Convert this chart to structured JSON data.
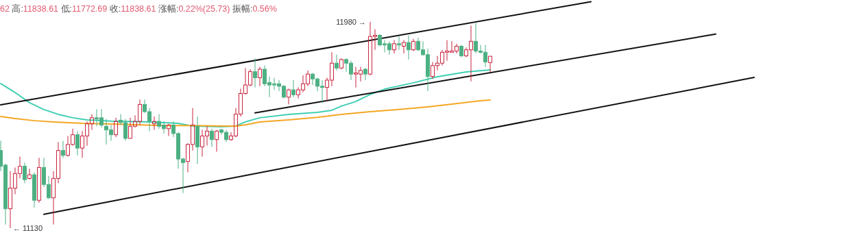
{
  "chart_data": {
    "type": "candlestick",
    "title": "62 高:11838.61 低:11772.69 收:11838.61 涨幅:0.22%(25.73) 振幅:0.56%",
    "categories": [
      null,
      null,
      null,
      null,
      null,
      null,
      null,
      null,
      null,
      null,
      null,
      null,
      null,
      null,
      null,
      null,
      null,
      null,
      null,
      null,
      null,
      null,
      null,
      null,
      null,
      null,
      null,
      null,
      null,
      null,
      null,
      null,
      null,
      null,
      null,
      null,
      null,
      null,
      null,
      null,
      null,
      null,
      null,
      null,
      null,
      null,
      null,
      null,
      null,
      null,
      null,
      null,
      null,
      null,
      null,
      null,
      null,
      null,
      null,
      null,
      null,
      null,
      null,
      null,
      null,
      null,
      null,
      null,
      null,
      null,
      null,
      null,
      null,
      null,
      null,
      null,
      null,
      null,
      null,
      null,
      null,
      null,
      null,
      null,
      null,
      null,
      null,
      null,
      null,
      null,
      null,
      null,
      null,
      null,
      null,
      null,
      null,
      null,
      null,
      null,
      null,
      null,
      null,
      null,
      null,
      null,
      null,
      null,
      null,
      null,
      null,
      null,
      null,
      null,
      null,
      null,
      null,
      null,
      null,
      null,
      null,
      null,
      null,
      null,
      null,
      null,
      null,
      null,
      null,
      null,
      null,
      null,
      null,
      null,
      null,
      null,
      null,
      null,
      null,
      null,
      null,
      null,
      null,
      null,
      null,
      null,
      null,
      null,
      null,
      null,
      null,
      null,
      null,
      null,
      null,
      null,
      null,
      null
    ],
    "ohlc": [
      [
        11450,
        11490,
        11365,
        11385
      ],
      [
        11390,
        11395,
        11145,
        11210
      ],
      [
        11210,
        11365,
        11130,
        11295
      ],
      [
        11295,
        11380,
        11270,
        11355
      ],
      [
        11355,
        11425,
        11335,
        11385
      ],
      [
        11385,
        11400,
        11315,
        11330
      ],
      [
        11335,
        11375,
        11330,
        11350
      ],
      [
        11350,
        11360,
        11215,
        11245
      ],
      [
        11245,
        11420,
        11235,
        11380
      ],
      [
        11380,
        11420,
        11300,
        11310
      ],
      [
        11310,
        11345,
        11250,
        11255
      ],
      [
        11255,
        11365,
        11145,
        11335
      ],
      [
        11335,
        11485,
        11315,
        11450
      ],
      [
        11450,
        11490,
        11420,
        11430
      ],
      [
        11430,
        11510,
        11425,
        11475
      ],
      [
        11475,
        11540,
        11470,
        11515
      ],
      [
        11515,
        11530,
        11430,
        11460
      ],
      [
        11460,
        11530,
        11420,
        11510
      ],
      [
        11510,
        11570,
        11470,
        11560
      ],
      [
        11560,
        11600,
        11535,
        11585
      ],
      [
        11585,
        11620,
        11550,
        11580
      ],
      [
        11585,
        11620,
        11545,
        11555
      ],
      [
        11550,
        11580,
        11475,
        11535
      ],
      [
        11535,
        11555,
        11490,
        11515
      ],
      [
        11515,
        11585,
        11505,
        11570
      ],
      [
        11575,
        11600,
        11555,
        11565
      ],
      [
        11565,
        11580,
        11490,
        11500
      ],
      [
        11500,
        11585,
        11500,
        11550
      ],
      [
        11550,
        11595,
        11545,
        11570
      ],
      [
        11570,
        11660,
        11555,
        11640
      ],
      [
        11640,
        11660,
        11605,
        11610
      ],
      [
        11610,
        11625,
        11530,
        11570
      ],
      [
        11560,
        11590,
        11535,
        11570
      ],
      [
        11570,
        11600,
        11540,
        11550
      ],
      [
        11555,
        11570,
        11520,
        11540
      ],
      [
        11540,
        11560,
        11510,
        11555
      ],
      [
        11555,
        11570,
        11505,
        11520
      ],
      [
        11520,
        11525,
        11375,
        11415
      ],
      [
        11415,
        11420,
        11275,
        11400
      ],
      [
        11405,
        11480,
        11360,
        11475
      ],
      [
        11475,
        11625,
        11450,
        11555
      ],
      [
        11550,
        11590,
        11395,
        11465
      ],
      [
        11465,
        11535,
        11425,
        11510
      ],
      [
        11510,
        11550,
        11470,
        11530
      ],
      [
        11530,
        11540,
        11465,
        11495
      ],
      [
        11495,
        11535,
        11445,
        11530
      ],
      [
        11535,
        11540,
        11515,
        11525
      ],
      [
        11525,
        11535,
        11485,
        11495
      ],
      [
        11495,
        11525,
        11490,
        11510
      ],
      [
        11510,
        11625,
        11505,
        11600
      ],
      [
        11600,
        11705,
        11590,
        11685
      ],
      [
        11685,
        11790,
        11680,
        11720
      ],
      [
        11720,
        11785,
        11715,
        11775
      ],
      [
        11775,
        11830,
        11710,
        11750
      ],
      [
        11750,
        11795,
        11715,
        11785
      ],
      [
        11785,
        11800,
        11715,
        11725
      ],
      [
        11730,
        11755,
        11670,
        11720
      ],
      [
        11725,
        11750,
        11700,
        11720
      ],
      [
        11725,
        11740,
        11695,
        11715
      ],
      [
        11715,
        11720,
        11665,
        11670
      ],
      [
        11670,
        11705,
        11640,
        11700
      ],
      [
        11700,
        11740,
        11670,
        11680
      ],
      [
        11680,
        11710,
        11665,
        11700
      ],
      [
        11700,
        11760,
        11690,
        11725
      ],
      [
        11725,
        11780,
        11715,
        11765
      ],
      [
        11765,
        11770,
        11720,
        11745
      ],
      [
        11745,
        11750,
        11695,
        11715
      ],
      [
        11715,
        11740,
        11645,
        11710
      ],
      [
        11710,
        11750,
        11655,
        11740
      ],
      [
        11740,
        11855,
        11715,
        11810
      ],
      [
        11810,
        11845,
        11780,
        11790
      ],
      [
        11790,
        11830,
        11785,
        11825
      ],
      [
        11825,
        11830,
        11775,
        11810
      ],
      [
        11810,
        11820,
        11740,
        11765
      ],
      [
        11765,
        11795,
        11710,
        11770
      ],
      [
        11765,
        11795,
        11735,
        11780
      ],
      [
        11785,
        11790,
        11740,
        11765
      ],
      [
        11765,
        11980,
        11760,
        11920
      ],
      [
        11920,
        11950,
        11865,
        11925
      ],
      [
        11925,
        11930,
        11880,
        11885
      ],
      [
        11890,
        11905,
        11855,
        11885
      ],
      [
        11890,
        11900,
        11845,
        11865
      ],
      [
        11865,
        11905,
        11850,
        11890
      ],
      [
        11890,
        11920,
        11865,
        11885
      ],
      [
        11880,
        11905,
        11850,
        11895
      ],
      [
        11895,
        11925,
        11825,
        11865
      ],
      [
        11865,
        11910,
        11860,
        11900
      ],
      [
        11900,
        11915,
        11860,
        11865
      ],
      [
        11865,
        11900,
        11840,
        11845
      ],
      [
        11845,
        11870,
        11695,
        11755
      ],
      [
        11755,
        11815,
        11745,
        11800
      ],
      [
        11800,
        11840,
        11780,
        11810
      ],
      [
        11810,
        11865,
        11800,
        11855
      ],
      [
        11855,
        11905,
        11820,
        11860
      ],
      [
        11855,
        11900,
        11855,
        11860
      ],
      [
        11860,
        11890,
        11850,
        11880
      ],
      [
        11880,
        11885,
        11835,
        11840
      ],
      [
        11840,
        11875,
        11835,
        11865
      ],
      [
        11865,
        11965,
        11735,
        11900
      ],
      [
        11900,
        11975,
        11850,
        11860
      ],
      [
        11860,
        11885,
        11850,
        11855
      ],
      [
        11855,
        11885,
        11795,
        11815
      ],
      [
        11812.62,
        11838.61,
        11772.69,
        11838.61
      ],
      null,
      null,
      null,
      null,
      null,
      null,
      null,
      null,
      null,
      null,
      null,
      null,
      null,
      null,
      null,
      null,
      null,
      null,
      null,
      null,
      null,
      null,
      null,
      null,
      null,
      null,
      null,
      null,
      null,
      null,
      null,
      null,
      null,
      null,
      null,
      null,
      null,
      null,
      null,
      null,
      null,
      null,
      null,
      null,
      null,
      null,
      null,
      null,
      null,
      null,
      null,
      null,
      null,
      null,
      null
    ],
    "colors": [
      "#4db083",
      "#4db083",
      "#c8233c",
      "#c8233c",
      "#c8233c",
      "#4db083",
      "#c8233c",
      "#4db083",
      "#c8233c",
      "#4db083",
      "#4db083",
      "#c8233c",
      "#c8233c",
      "#4db083",
      "#c8233c",
      "#c8233c",
      "#4db083",
      "#c8233c",
      "#c8233c",
      "#c8233c",
      "#4db083",
      "#4db083",
      "#4db083",
      "#4db083",
      "#c8233c",
      "#4db083",
      "#4db083",
      "#c8233c",
      "#c8233c",
      "#c8233c",
      "#4db083",
      "#4db083",
      "#c8233c",
      "#4db083",
      "#4db083",
      "#c8233c",
      "#4db083",
      "#4db083",
      "#4db083",
      "#c8233c",
      "#c8233c",
      "#4db083",
      "#c8233c",
      "#c8233c",
      "#4db083",
      "#c8233c",
      "#4db083",
      "#4db083",
      "#c8233c",
      "#c8233c",
      "#c8233c",
      "#c8233c",
      "#c8233c",
      "#4db083",
      "#c8233c",
      "#4db083",
      "#4db083",
      "#4db083",
      "#4db083",
      "#4db083",
      "#c8233c",
      "#4db083",
      "#c8233c",
      "#c8233c",
      "#c8233c",
      "#4db083",
      "#4db083",
      "#4db083",
      "#c8233c",
      "#c8233c",
      "#4db083",
      "#c8233c",
      "#4db083",
      "#4db083",
      "#c8233c",
      "#c8233c",
      "#4db083",
      "#c8233c",
      "#c8233c",
      "#4db083",
      "#4db083",
      "#4db083",
      "#c8233c",
      "#4db083",
      "#c8233c",
      "#4db083",
      "#c8233c",
      "#4db083",
      "#4db083",
      "#4db083",
      "#c8233c",
      "#c8233c",
      "#c8233c",
      "#c8233c",
      "#c8233c",
      "#c8233c",
      "#4db083",
      "#c8233c",
      "#c8233c",
      "#4db083",
      "#4db083",
      "#4db083",
      "#c8233c",
      null,
      null,
      null,
      null,
      null,
      null,
      null,
      null,
      null,
      null,
      null,
      null,
      null,
      null,
      null,
      null,
      null,
      null,
      null,
      null,
      null,
      null,
      null,
      null,
      null,
      null,
      null,
      null,
      null,
      null,
      null,
      null,
      null,
      null,
      null,
      null,
      null,
      null,
      null,
      null,
      null,
      null,
      null,
      null,
      null,
      null,
      null,
      null,
      null,
      null,
      null,
      null,
      null,
      null,
      null
    ],
    "annotations": [
      "11980 →",
      "← 11130"
    ],
    "series": [
      {
        "type": "line",
        "color": "#3ecfb2",
        "values": [
          11726,
          null,
          null,
          11689,
          null,
          null,
          11647,
          null,
          null,
          11619,
          null,
          null,
          11599,
          null,
          null,
          11585,
          null,
          null,
          11576,
          null,
          null,
          null,
          null,
          11571,
          null,
          null,
          null,
          null,
          null,
          null,
          null,
          11568,
          null,
          null,
          null,
          null,
          null,
          11562,
          null,
          null,
          11551,
          null,
          null,
          null,
          null,
          null,
          11548,
          null,
          null,
          11551,
          null,
          11568,
          null,
          null,
          11585,
          null,
          null,
          null,
          null,
          null,
          11599,
          null,
          null,
          null,
          null,
          null,
          11607,
          null,
          null,
          11616,
          null,
          11633,
          null,
          null,
          11652,
          null,
          null,
          11681,
          null,
          null,
          11703,
          null,
          null,
          null,
          null,
          null,
          11729,
          null,
          null,
          null,
          null,
          11754,
          null,
          null,
          null,
          null,
          null,
          11774,
          null,
          null,
          null,
          null,
          11782,
          null,
          null,
          null,
          null,
          null,
          null,
          null,
          null,
          null,
          null,
          null,
          null,
          null,
          null,
          null,
          null,
          null,
          null,
          null,
          null,
          null,
          null,
          null,
          null,
          null,
          null,
          null,
          null,
          null,
          null,
          null,
          null,
          null,
          null,
          null,
          null,
          null,
          null,
          null,
          null,
          null,
          null,
          null,
          null,
          null,
          null,
          null,
          null,
          null,
          null,
          null,
          null,
          null,
          null,
          null
        ]
      },
      {
        "type": "line",
        "color": "#f5a623",
        "values": [
          11590,
          null,
          null,
          11582,
          null,
          null,
          null,
          11573,
          null,
          null,
          null,
          11568,
          null,
          null,
          null,
          null,
          null,
          11562,
          null,
          null,
          null,
          null,
          null,
          11559,
          null,
          null,
          null,
          null,
          null,
          11556,
          null,
          null,
          null,
          null,
          11553,
          null,
          null,
          null,
          null,
          null,
          11553,
          null,
          null,
          null,
          null,
          null,
          11551,
          null,
          null,
          11551,
          null,
          11556,
          null,
          null,
          11568,
          null,
          null,
          null,
          null,
          null,
          11576,
          null,
          null,
          null,
          null,
          null,
          11587,
          null,
          null,
          null,
          null,
          11599,
          null,
          null,
          null,
          null,
          null,
          11610,
          null,
          null,
          null,
          null,
          null,
          11619,
          null,
          null,
          null,
          null,
          null,
          11630,
          null,
          null,
          null,
          null,
          11641,
          null,
          null,
          null,
          null,
          null,
          11655,
          null,
          11658,
          null,
          null,
          null,
          null,
          null,
          null,
          null,
          null,
          null,
          null,
          null,
          null,
          null,
          null,
          null,
          null,
          null,
          null,
          null,
          null,
          null,
          null,
          null,
          null,
          null,
          null,
          null,
          null,
          null,
          null,
          null,
          null,
          null,
          null,
          null,
          null,
          null,
          null,
          null,
          null,
          null,
          null,
          null,
          null,
          null,
          null,
          null,
          null,
          null,
          null,
          null,
          null,
          null,
          null,
          null
        ]
      },
      {
        "type": "line",
        "color": "#111111",
        "values": [
          11638,
          null,
          null,
          null,
          null,
          null,
          null,
          null,
          null,
          null,
          null,
          null,
          null,
          null,
          null,
          null,
          null,
          null,
          null,
          null,
          null,
          null,
          null,
          null,
          null,
          null,
          null,
          null,
          null,
          null,
          null,
          null,
          null,
          null,
          null,
          null,
          null,
          null,
          null,
          null,
          null,
          null,
          null,
          null,
          null,
          null,
          null,
          null,
          null,
          null,
          null,
          null,
          null,
          null,
          null,
          null,
          null,
          null,
          null,
          null,
          null,
          null,
          null,
          null,
          null,
          null,
          null,
          null,
          null,
          null,
          null,
          null,
          null,
          null,
          null,
          null,
          null,
          null,
          null,
          null,
          null,
          null,
          null,
          null,
          null,
          null,
          null,
          null,
          null,
          null,
          null,
          null,
          null,
          null,
          null,
          null,
          null,
          null,
          null,
          null,
          null,
          null,
          null,
          null,
          null,
          null,
          null,
          null,
          null,
          null,
          null,
          null,
          null,
          null,
          null,
          null,
          null,
          null,
          null,
          null,
          null,
          null,
          null,
          12063,
          null,
          null,
          null,
          null,
          null,
          null,
          null,
          null,
          null,
          null,
          null,
          null,
          null,
          null,
          null,
          null,
          null,
          null,
          null,
          null,
          null,
          null,
          null,
          null,
          null,
          null,
          null,
          null,
          null,
          null,
          null,
          null,
          null,
          null
        ]
      },
      {
        "type": "line",
        "color": "#111111",
        "values": [
          null,
          null,
          null,
          null,
          null,
          null,
          null,
          null,
          null,
          null,
          null,
          null,
          null,
          null,
          null,
          null,
          null,
          null,
          null,
          null,
          null,
          null,
          null,
          null,
          null,
          null,
          null,
          null,
          null,
          null,
          null,
          null,
          null,
          null,
          null,
          null,
          null,
          null,
          null,
          null,
          null,
          null,
          null,
          null,
          null,
          null,
          null,
          null,
          null,
          null,
          null,
          null,
          null,
          11605,
          null,
          null,
          null,
          null,
          null,
          null,
          null,
          null,
          null,
          null,
          null,
          null,
          null,
          null,
          null,
          null,
          null,
          null,
          null,
          null,
          null,
          null,
          null,
          null,
          null,
          null,
          null,
          null,
          null,
          null,
          null,
          null,
          null,
          null,
          null,
          null,
          null,
          null,
          null,
          null,
          null,
          null,
          null,
          null,
          null,
          null,
          null,
          null,
          null,
          null,
          null,
          null,
          null,
          null,
          null,
          null,
          null,
          null,
          null,
          null,
          null,
          null,
          null,
          null,
          null,
          null,
          null,
          null,
          null,
          null,
          null,
          null,
          null,
          null,
          null,
          null,
          null,
          null,
          null,
          null,
          null,
          null,
          null,
          null,
          null,
          null,
          null,
          null,
          null,
          null,
          null,
          null,
          null,
          null,
          null,
          11930,
          null,
          null,
          null,
          null,
          null,
          null,
          null,
          null
        ]
      },
      {
        "type": "line",
        "color": "#111111",
        "values": [
          null,
          null,
          null,
          null,
          null,
          null,
          null,
          null,
          null,
          11187,
          null,
          null,
          null,
          null,
          null,
          null,
          null,
          null,
          null,
          null,
          null,
          null,
          null,
          null,
          null,
          null,
          null,
          null,
          null,
          null,
          null,
          null,
          null,
          null,
          null,
          null,
          null,
          null,
          null,
          null,
          null,
          null,
          null,
          null,
          null,
          null,
          null,
          null,
          null,
          null,
          null,
          null,
          null,
          null,
          null,
          null,
          null,
          null,
          null,
          null,
          null,
          null,
          null,
          null,
          null,
          null,
          null,
          null,
          null,
          null,
          null,
          null,
          null,
          null,
          null,
          null,
          null,
          null,
          null,
          null,
          null,
          null,
          null,
          null,
          null,
          null,
          null,
          null,
          null,
          null,
          null,
          null,
          null,
          null,
          null,
          null,
          null,
          null,
          null,
          null,
          null,
          null,
          null,
          null,
          null,
          null,
          null,
          null,
          null,
          null,
          null,
          null,
          null,
          null,
          null,
          null,
          null,
          null,
          null,
          null,
          null,
          null,
          null,
          null,
          null,
          null,
          null,
          null,
          null,
          null,
          null,
          null,
          null,
          null,
          null,
          null,
          null,
          null,
          null,
          null,
          null,
          null,
          null,
          null,
          null,
          null,
          null,
          null,
          null,
          null,
          null,
          null,
          null,
          null,
          null,
          null,
          null,
          11751
        ]
      }
    ]
  }
}
